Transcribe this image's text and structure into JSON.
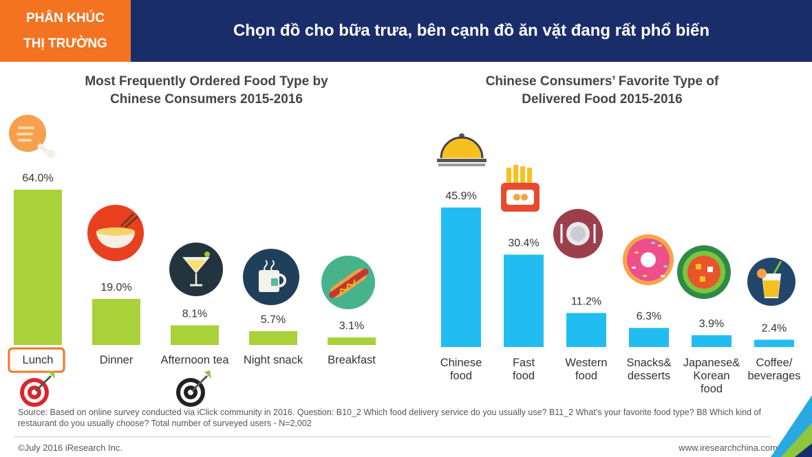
{
  "header": {
    "tag_line1": "PHÂN KHÚC",
    "tag_line2": "THỊ TRƯỜNG",
    "title": "Chọn đồ cho bữa trưa, bên cạnh đồ ăn vặt đang rất phổ biến"
  },
  "colors": {
    "header_bg": "#1a2d6b",
    "tag_bg": "#f47321",
    "left_bar": "#a8d13a",
    "right_bar": "#22bdf0",
    "highlight_box": "#f47321"
  },
  "chart_data": [
    {
      "type": "bar",
      "title_line1": "Most Frequently Ordered Food Type by",
      "title_line2": "Chinese Consumers 2015-2016",
      "categories": [
        "Lunch",
        "Dinner",
        "Afternoon tea",
        "Night snack",
        "Breakfast"
      ],
      "values": [
        64.0,
        19.0,
        8.1,
        5.7,
        3.1
      ],
      "value_labels": [
        "64.0%",
        "19.0%",
        "8.1%",
        "5.7%",
        "3.1%"
      ],
      "icons": [
        "chicken-leg-icon",
        "noodle-bowl-icon",
        "cocktail-icon",
        "tea-mug-icon",
        "hotdog-icon"
      ],
      "highlighted": [
        "Lunch",
        "Afternoon tea"
      ],
      "ylim": [
        0,
        64
      ]
    },
    {
      "type": "bar",
      "title_line1": "Chinese Consumers’ Favorite Type of",
      "title_line2": "Delivered Food 2015-2016",
      "categories": [
        [
          "Chinese",
          "food"
        ],
        [
          "Fast",
          "food"
        ],
        [
          "Western",
          "food"
        ],
        [
          "Snacks&",
          "desserts"
        ],
        [
          "Japanese&",
          "Korean",
          "food"
        ],
        [
          "Coffee/",
          "beverages"
        ]
      ],
      "values": [
        45.9,
        30.4,
        11.2,
        6.3,
        3.9,
        2.4
      ],
      "value_labels": [
        "45.9%",
        "30.4%",
        "11.2%",
        "6.3%",
        "3.9%",
        "2.4%"
      ],
      "icons": [
        "food-cloche-icon",
        "fries-icon",
        "plate-icon",
        "donut-icon",
        "hotpot-icon",
        "juice-icon"
      ],
      "ylim": [
        0,
        45.9
      ]
    }
  ],
  "footer": {
    "source": "Source: Based on online survey conducted via iClick community in 2016. Question: B10_2 Which food delivery service do you usually use? B11_2 What’s your favorite food type? B8 Which kind of restaurant do you usually choose? Total number of surveyed users - N=2,002",
    "copyright": "©July 2016 iResearch Inc.",
    "website": "www.iresearchchina.com"
  }
}
